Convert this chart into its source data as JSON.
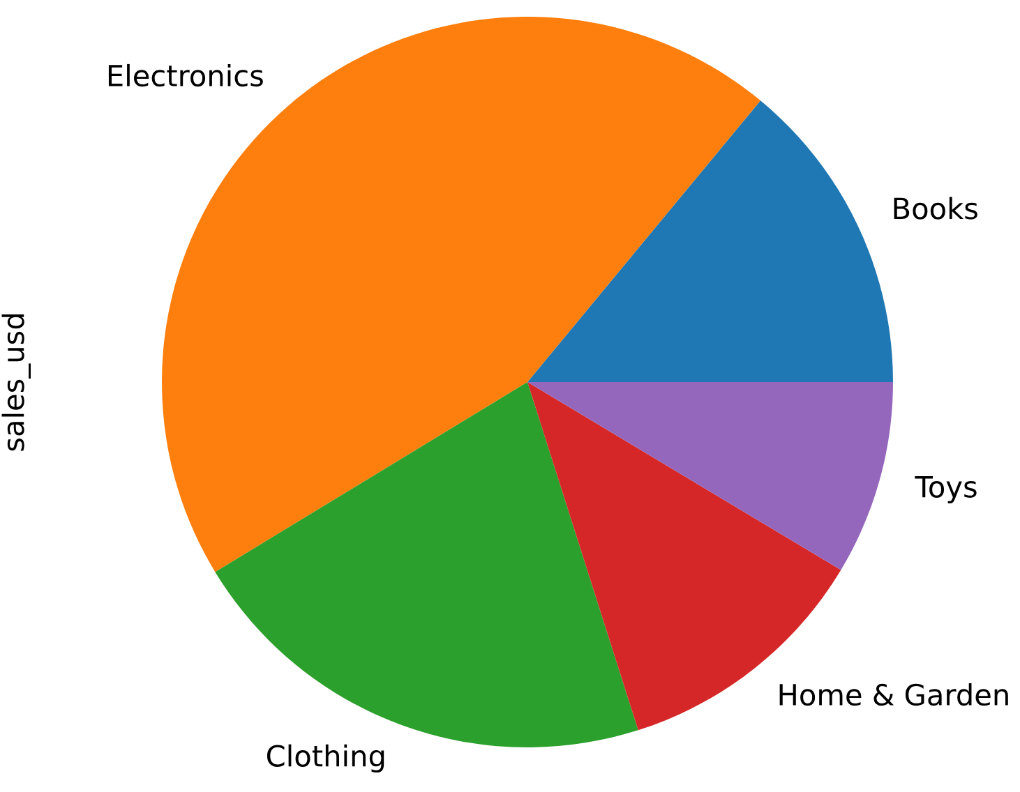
{
  "chart_data": {
    "type": "pie",
    "ylabel": "sales_usd",
    "categories": [
      "Books",
      "Electronics",
      "Clothing",
      "Home & Garden",
      "Toys"
    ],
    "values": [
      14.0,
      44.7,
      21.2,
      11.5,
      8.6
    ],
    "colors": [
      "#1f77b4",
      "#ff7f0e",
      "#2ca02c",
      "#d62728",
      "#9467bd"
    ],
    "legend": false
  }
}
